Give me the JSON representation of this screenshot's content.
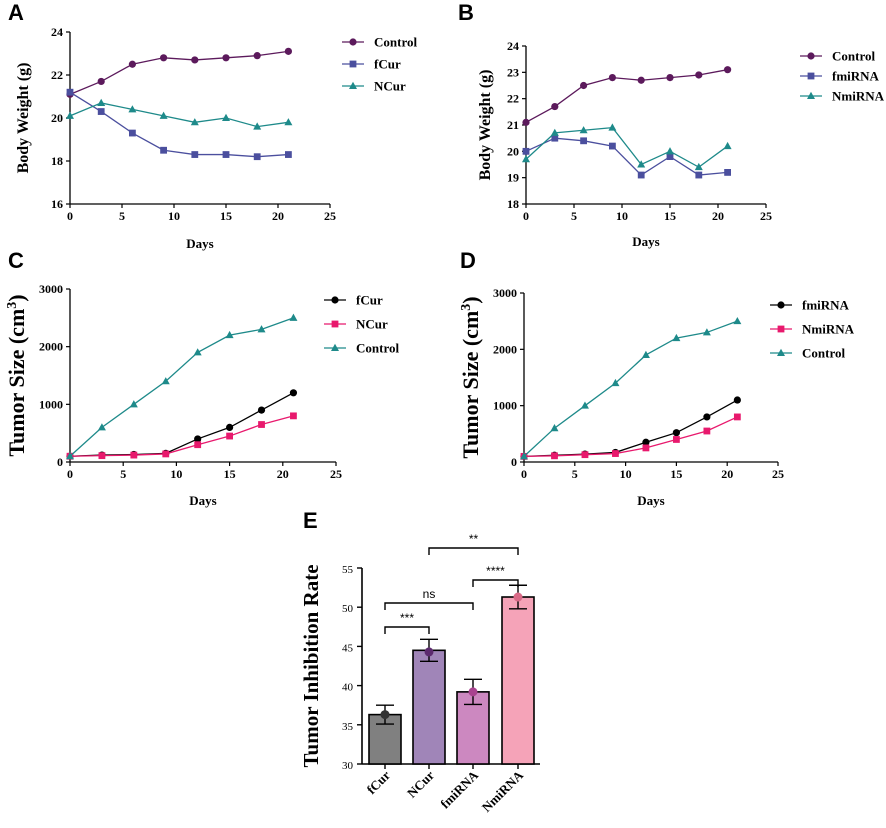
{
  "chart_data": [
    {
      "id": "A",
      "type": "line",
      "title": "A",
      "xlabel": "Days",
      "ylabel": "Body  Weight (g)",
      "xlim": [
        0,
        25
      ],
      "ylim": [
        16,
        24
      ],
      "xticks": [
        0,
        5,
        10,
        15,
        20,
        25
      ],
      "yticks": [
        16,
        18,
        20,
        22,
        24
      ],
      "x": [
        0,
        3,
        6,
        9,
        12,
        15,
        18,
        21
      ],
      "legend_position": "right",
      "series": [
        {
          "name": "Control",
          "color": "#5c1a5c",
          "marker": "circle",
          "values": [
            21.1,
            21.7,
            22.5,
            22.8,
            22.7,
            22.8,
            22.9,
            23.1
          ]
        },
        {
          "name": "fCur",
          "color": "#4b4f9e",
          "marker": "square",
          "values": [
            21.2,
            20.3,
            19.3,
            18.5,
            18.3,
            18.3,
            18.2,
            18.3
          ]
        },
        {
          "name": "NCur",
          "color": "#1e8a8a",
          "marker": "triangle",
          "values": [
            20.1,
            20.7,
            20.4,
            20.1,
            19.8,
            20.0,
            19.6,
            19.8
          ]
        }
      ]
    },
    {
      "id": "B",
      "type": "line",
      "title": "B",
      "xlabel": "Days",
      "ylabel": "Body  Weight (g)",
      "xlim": [
        0,
        25
      ],
      "ylim": [
        18,
        24
      ],
      "xticks": [
        0,
        5,
        10,
        15,
        20,
        25
      ],
      "yticks": [
        18,
        19,
        20,
        21,
        22,
        23,
        24
      ],
      "x": [
        0,
        3,
        6,
        9,
        12,
        15,
        18,
        21
      ],
      "legend_position": "right",
      "series": [
        {
          "name": "Control",
          "color": "#5c1a5c",
          "marker": "circle",
          "values": [
            21.1,
            21.7,
            22.5,
            22.8,
            22.7,
            22.8,
            22.9,
            23.1
          ]
        },
        {
          "name": "fmiRNA",
          "color": "#4b4f9e",
          "marker": "square",
          "values": [
            20.0,
            20.5,
            20.4,
            20.2,
            19.1,
            19.8,
            19.1,
            19.2
          ]
        },
        {
          "name": "NmiRNA",
          "color": "#1e8a8a",
          "marker": "triangle",
          "values": [
            19.7,
            20.7,
            20.8,
            20.9,
            19.5,
            20.0,
            19.4,
            20.2
          ]
        }
      ]
    },
    {
      "id": "C",
      "type": "line",
      "title": "C",
      "xlabel": "Days",
      "ylabel": "Tumor Size (cm",
      "ylabel_superscript": "3",
      "ylabel_suffix": ")",
      "xlim": [
        0,
        25
      ],
      "ylim": [
        0,
        3000
      ],
      "xticks": [
        0,
        5,
        10,
        15,
        20,
        25
      ],
      "yticks": [
        0,
        1000,
        2000,
        3000
      ],
      "x": [
        0,
        3,
        6,
        9,
        12,
        15,
        18,
        21
      ],
      "legend_position": "right",
      "series": [
        {
          "name": "fCur",
          "color": "#000000",
          "marker": "circle",
          "values": [
            100,
            120,
            130,
            150,
            400,
            600,
            900,
            1200
          ]
        },
        {
          "name": "NCur",
          "color": "#e8196d",
          "marker": "square",
          "values": [
            100,
            110,
            120,
            140,
            300,
            450,
            650,
            800
          ]
        },
        {
          "name": "Control",
          "color": "#1e8a8a",
          "marker": "triangle",
          "values": [
            100,
            600,
            1000,
            1400,
            1900,
            2200,
            2300,
            2500
          ]
        }
      ]
    },
    {
      "id": "D",
      "type": "line",
      "title": "D",
      "xlabel": "Days",
      "ylabel": "Tumor Size (cm",
      "ylabel_superscript": "3",
      "ylabel_suffix": ")",
      "xlim": [
        0,
        25
      ],
      "ylim": [
        0,
        3000
      ],
      "xticks": [
        0,
        5,
        10,
        15,
        20,
        25
      ],
      "yticks": [
        0,
        1000,
        2000,
        3000
      ],
      "x": [
        0,
        3,
        6,
        9,
        12,
        15,
        18,
        21
      ],
      "legend_position": "right",
      "series": [
        {
          "name": "fmiRNA",
          "color": "#000000",
          "marker": "circle",
          "values": [
            100,
            120,
            140,
            170,
            350,
            520,
            800,
            1100
          ]
        },
        {
          "name": "NmiRNA",
          "color": "#e8196d",
          "marker": "square",
          "values": [
            100,
            110,
            130,
            150,
            250,
            400,
            550,
            800
          ]
        },
        {
          "name": "Control",
          "color": "#1e8a8a",
          "marker": "triangle",
          "values": [
            100,
            600,
            1000,
            1400,
            1900,
            2200,
            2300,
            2500
          ]
        }
      ]
    },
    {
      "id": "E",
      "type": "bar",
      "title": "E",
      "xlabel": "",
      "ylabel": "Tumor Inhibition Rate",
      "ylim": [
        30,
        55
      ],
      "yticks": [
        30,
        35,
        40,
        45,
        50,
        55
      ],
      "categories": [
        "fCur",
        "NCur",
        "fmiRNA",
        "NmiRNA"
      ],
      "values": [
        36.3,
        44.5,
        39.2,
        51.3
      ],
      "errors": [
        1.2,
        1.4,
        1.6,
        1.5
      ],
      "points": [
        36.3,
        44.3,
        39.2,
        51.3
      ],
      "colors": [
        "#808080",
        "#a085b8",
        "#cc88c0",
        "#f5a3b8"
      ],
      "point_colors": [
        "#333333",
        "#5c2a6e",
        "#a8428f",
        "#d96a87"
      ],
      "comparisons": [
        {
          "from": 0,
          "to": 1,
          "label": "***"
        },
        {
          "from": 0,
          "to": 2,
          "label": "ns"
        },
        {
          "from": 2,
          "to": 3,
          "label": "****"
        },
        {
          "from": 1,
          "to": 3,
          "label": "**"
        }
      ]
    }
  ]
}
